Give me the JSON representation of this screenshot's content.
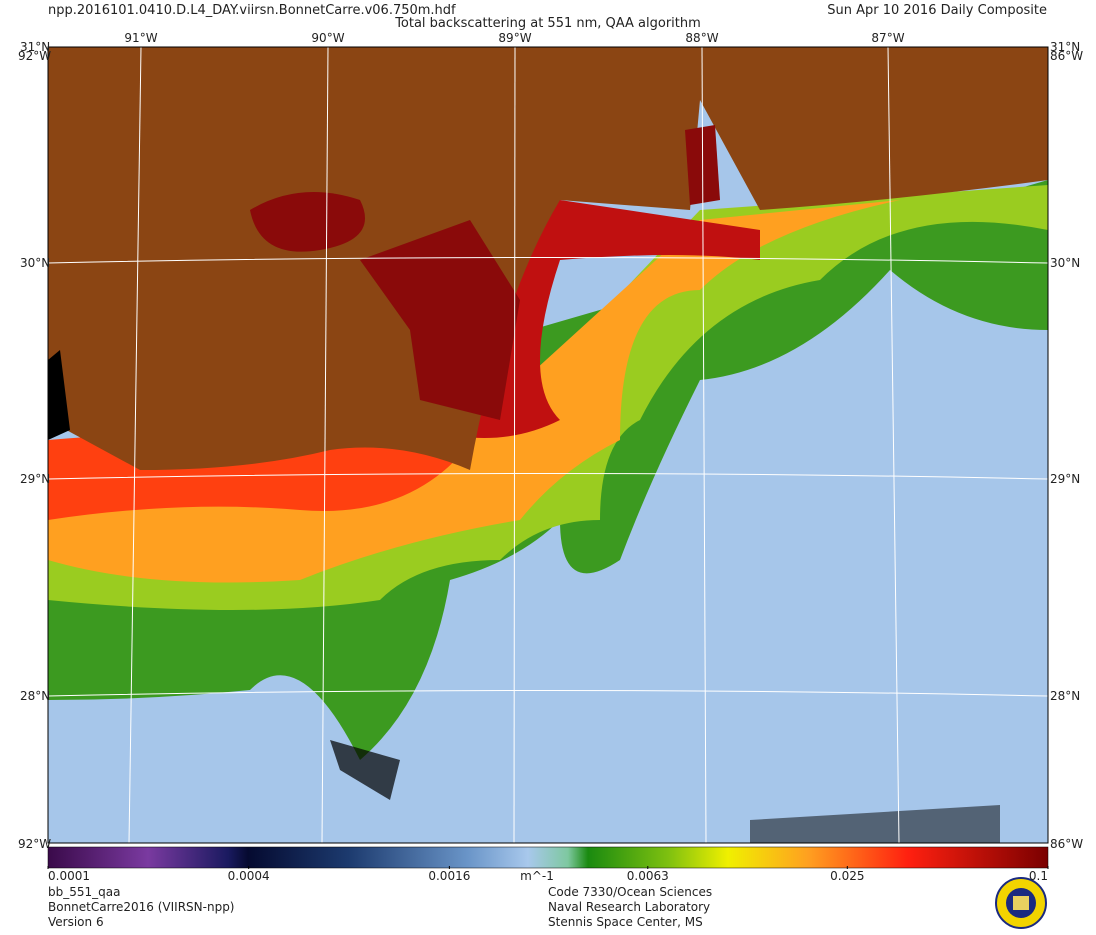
{
  "header": {
    "filename": "npp.2016101.0410.D.L4_DAY.viirsn.BonnetCarre.v06.750m.hdf",
    "title": "Total backscattering at 551 nm, QAA algorithm",
    "date": "Sun Apr 10 2016 Daily Composite"
  },
  "map": {
    "lat_labels": [
      "31°N",
      "30°N",
      "29°N",
      "28°N"
    ],
    "lon_labels": [
      "91°W",
      "90°W",
      "89°W",
      "88°W",
      "87°W"
    ],
    "corner_labels": [
      "92°W",
      "86°W"
    ]
  },
  "colorbar": {
    "lim": [
      0.0001,
      0.1
    ],
    "log": true,
    "ticks": [
      0.0001,
      0.0004,
      0.0016,
      0.0063,
      0.025,
      0.1
    ],
    "unit": "m^-1"
  },
  "footer": {
    "left": [
      "bb_551_qaa",
      "BonnetCarre2016 (VIIRSN-npp)",
      "Version 6"
    ],
    "center": [
      "Code 7330/Ocean Sciences",
      "Naval Research Laboratory",
      "Stennis Space Center, MS"
    ]
  }
}
